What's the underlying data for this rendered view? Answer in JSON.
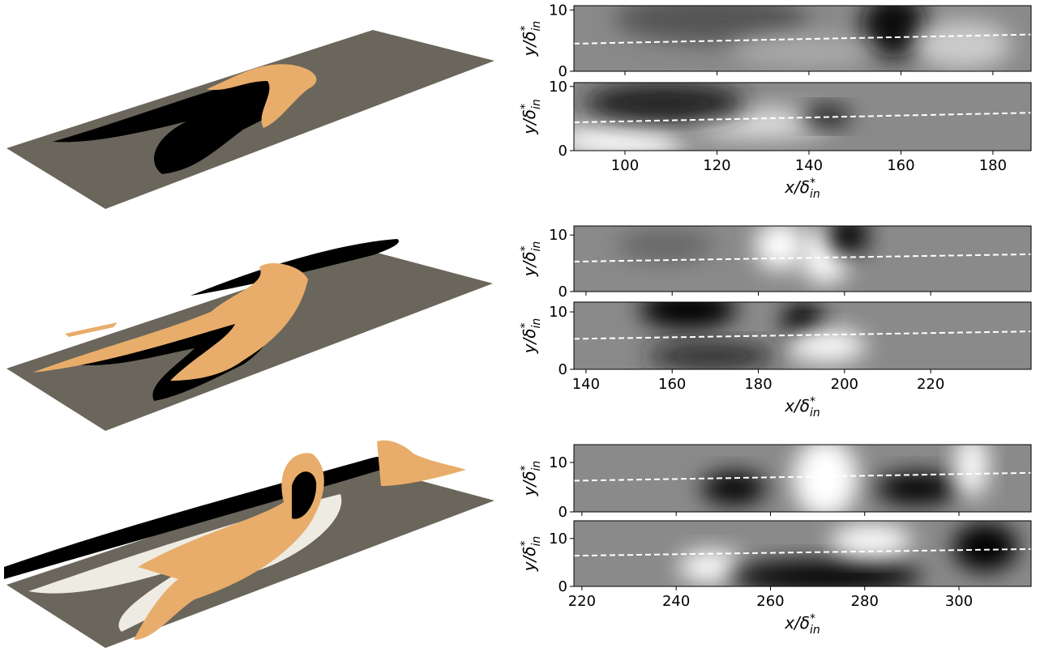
{
  "chart_data": [
    {
      "type": "heatmap",
      "ylabel": {
        "base": "y/δ",
        "sup": "*",
        "sub": "in"
      },
      "xlim": [
        88.9,
        188.3
      ],
      "ylim": [
        0,
        10.7
      ],
      "yticks": [
        0,
        10
      ],
      "line": {
        "x": [
          88.9,
          188.3
        ],
        "y": [
          4.5,
          6
        ],
        "color": "#ffffff"
      }
    },
    {
      "type": "heatmap",
      "ylabel": {
        "base": "y/δ",
        "sup": "*",
        "sub": "in"
      },
      "xlabel": {
        "base": "x/δ",
        "sup": "*",
        "sub": "in"
      },
      "xlim": [
        88.9,
        188.3
      ],
      "ylim": [
        0,
        10.6
      ],
      "xticks": [
        100,
        120,
        140,
        160,
        180
      ],
      "yticks": [
        0,
        10
      ],
      "line": {
        "x": [
          88.9,
          188.3
        ],
        "y": [
          4.4,
          5.9
        ],
        "color": "#ffffff"
      }
    },
    {
      "type": "heatmap",
      "ylabel": {
        "base": "y/δ",
        "sup": "*",
        "sub": "in"
      },
      "xlim": [
        137.2,
        243.3
      ],
      "ylim": [
        0,
        11.6
      ],
      "yticks": [
        0,
        10
      ],
      "line": {
        "x": [
          137.2,
          243.3
        ],
        "y": [
          5.3,
          6.6
        ],
        "color": "#ffffff"
      }
    },
    {
      "type": "heatmap",
      "ylabel": {
        "base": "y/δ",
        "sup": "*",
        "sub": "in"
      },
      "xlabel": {
        "base": "x/δ",
        "sup": "*",
        "sub": "in"
      },
      "xlim": [
        137.2,
        243.3
      ],
      "ylim": [
        0,
        11.7
      ],
      "xticks": [
        140,
        160,
        180,
        200,
        220
      ],
      "yticks": [
        0,
        10
      ],
      "line": {
        "x": [
          137.2,
          243.3
        ],
        "y": [
          5.3,
          6.6
        ],
        "color": "#ffffff"
      }
    },
    {
      "type": "heatmap",
      "ylabel": {
        "base": "y/δ",
        "sup": "*",
        "sub": "in"
      },
      "xlim": [
        218.3,
        315.3
      ],
      "ylim": [
        0,
        13.6
      ],
      "yticks": [
        0,
        10
      ],
      "line": {
        "x": [
          218.3,
          315.3
        ],
        "y": [
          6.3,
          7.9
        ],
        "color": "#ffffff"
      }
    },
    {
      "type": "heatmap",
      "ylabel": {
        "base": "y/δ",
        "sup": "*",
        "sub": "in"
      },
      "xlabel": {
        "base": "x/δ",
        "sup": "*",
        "sub": "in"
      },
      "xlim": [
        218.3,
        315.3
      ],
      "ylim": [
        0,
        13.7
      ],
      "xticks": [
        220,
        240,
        260,
        280,
        300
      ],
      "yticks": [
        0,
        10
      ],
      "line": {
        "x": [
          218.3,
          315.3
        ],
        "y": [
          6.4,
          7.8
        ],
        "color": "#ffffff"
      }
    }
  ]
}
